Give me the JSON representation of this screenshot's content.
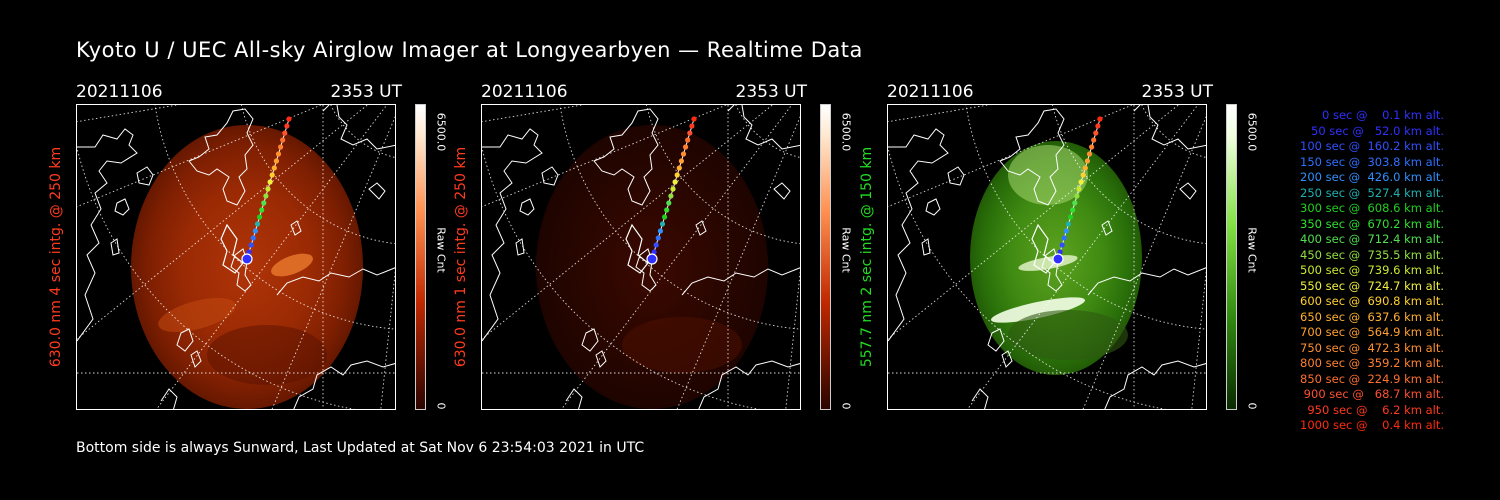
{
  "title": "Kyoto U / UEC All-sky Airglow Imager at Longyearbyen — Realtime Data",
  "footer": "Bottom side is always Sunward, Last Updated at Sat Nov  6 23:54:03 2021 in UTC",
  "panels": [
    {
      "date": "20211106",
      "time": "2353 UT",
      "ylabel": "630.0 nm 4 sec intg. @ 250 km",
      "label_color": "#ff3b1f",
      "cbar_max": "6500.0",
      "cbar_min": "0",
      "cbar_unit": "Raw Cnt",
      "colormap": "red",
      "intensity": 1.0
    },
    {
      "date": "20211106",
      "time": "2353 UT",
      "ylabel": "630.0 nm 1 sec intg. @ 250 km",
      "label_color": "#ff3b1f",
      "cbar_max": "6500.0",
      "cbar_min": "0",
      "cbar_unit": "Raw Cnt",
      "colormap": "red",
      "intensity": 0.3
    },
    {
      "date": "20211106",
      "time": "2353 UT",
      "ylabel": "557.7 nm 2 sec intg. @ 150 km",
      "label_color": "#22dd22",
      "cbar_max": "6500.0",
      "cbar_min": "0",
      "cbar_unit": "Raw Cnt",
      "colormap": "green",
      "intensity": 1.0
    }
  ],
  "trajectory_legend": [
    {
      "sec": "0",
      "alt": "0.1",
      "color": "#3030ff"
    },
    {
      "sec": "50",
      "alt": "52.0",
      "color": "#3030ff"
    },
    {
      "sec": "100",
      "alt": "160.2",
      "color": "#3050ff"
    },
    {
      "sec": "150",
      "alt": "303.8",
      "color": "#3070ff"
    },
    {
      "sec": "200",
      "alt": "426.0",
      "color": "#3090ff"
    },
    {
      "sec": "250",
      "alt": "527.4",
      "color": "#20b0b0"
    },
    {
      "sec": "300",
      "alt": "608.6",
      "color": "#20d020"
    },
    {
      "sec": "350",
      "alt": "670.2",
      "color": "#30e030"
    },
    {
      "sec": "400",
      "alt": "712.4",
      "color": "#50e050"
    },
    {
      "sec": "450",
      "alt": "735.5",
      "color": "#90e040"
    },
    {
      "sec": "500",
      "alt": "739.6",
      "color": "#c8e830"
    },
    {
      "sec": "550",
      "alt": "724.7",
      "color": "#f0f040"
    },
    {
      "sec": "600",
      "alt": "690.8",
      "color": "#ffd030"
    },
    {
      "sec": "650",
      "alt": "637.6",
      "color": "#ffb030"
    },
    {
      "sec": "700",
      "alt": "564.9",
      "color": "#ffa030"
    },
    {
      "sec": "750",
      "alt": "472.3",
      "color": "#ff9030"
    },
    {
      "sec": "800",
      "alt": "359.2",
      "color": "#ff8030"
    },
    {
      "sec": "850",
      "alt": "224.9",
      "color": "#ff7030"
    },
    {
      "sec": "900",
      "alt": "68.7",
      "color": "#ff5030"
    },
    {
      "sec": "950",
      "alt": "6.2",
      "color": "#ff3a20"
    },
    {
      "sec": "1000",
      "alt": "0.4",
      "color": "#ff2a10"
    }
  ]
}
